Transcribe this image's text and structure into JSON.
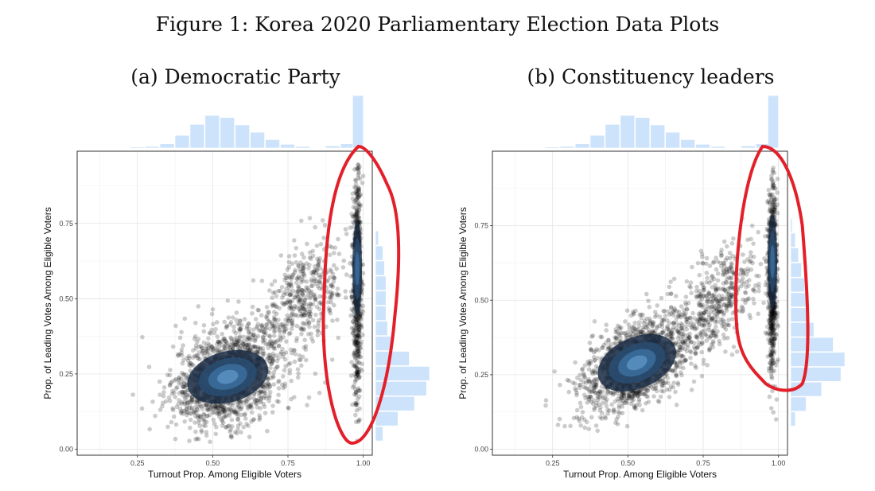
{
  "figure_title": "Figure 1: Korea 2020 Parliamentary Election Data Plots",
  "chart_data": [
    {
      "type": "scatter",
      "title": "(a) Democratic Party",
      "xlabel": "Turnout Prop. Among Eligible Voters",
      "ylabel": "Prop. of Leading Votes Among Eligible Voters",
      "xlim": [
        0.05,
        1.03
      ],
      "ylim": [
        -0.02,
        0.99
      ],
      "xticks": [
        0.25,
        0.5,
        0.75,
        1.0
      ],
      "xtick_labels": [
        "0.25",
        "0.50",
        "0.75",
        "1.00"
      ],
      "yticks": [
        0.0,
        0.25,
        0.5,
        0.75
      ],
      "ytick_labels": [
        "0.00",
        "0.25",
        "0.50",
        "0.75"
      ],
      "grid": true,
      "point_color": "#000000",
      "density_colors": [
        "#1b2d44",
        "#2a4d72",
        "#3b6f9e",
        "#5a92c2"
      ],
      "marginal_color": "#cde3fb",
      "highlight_color": "#e3202a",
      "clusters": [
        {
          "name": "main",
          "x_center": 0.55,
          "y_center": 0.24,
          "x_spread": 0.09,
          "y_spread": 0.08,
          "slope": 0.28
        },
        {
          "name": "tail",
          "x_center": 0.8,
          "y_center": 0.5,
          "x_spread": 0.07,
          "y_spread": 0.09,
          "slope": 0.6
        },
        {
          "name": "vertical",
          "x_center": 0.98,
          "y_center": 0.55,
          "x_spread": 0.008,
          "y_spread": 0.2,
          "slope": 0
        }
      ],
      "x_marginal": [
        {
          "x": 0.25,
          "count": 2
        },
        {
          "x": 0.3,
          "count": 3
        },
        {
          "x": 0.35,
          "count": 8
        },
        {
          "x": 0.4,
          "count": 24
        },
        {
          "x": 0.45,
          "count": 45
        },
        {
          "x": 0.5,
          "count": 62
        },
        {
          "x": 0.55,
          "count": 58
        },
        {
          "x": 0.6,
          "count": 44
        },
        {
          "x": 0.65,
          "count": 30
        },
        {
          "x": 0.7,
          "count": 16
        },
        {
          "x": 0.75,
          "count": 7
        },
        {
          "x": 0.8,
          "count": 3
        },
        {
          "x": 0.9,
          "count": 4
        },
        {
          "x": 0.95,
          "count": 8
        },
        {
          "x": 0.98,
          "count": 100
        }
      ],
      "y_marginal": [
        {
          "y": 0.05,
          "count": 10
        },
        {
          "y": 0.1,
          "count": 30
        },
        {
          "y": 0.15,
          "count": 52
        },
        {
          "y": 0.2,
          "count": 68
        },
        {
          "y": 0.25,
          "count": 72
        },
        {
          "y": 0.3,
          "count": 45
        },
        {
          "y": 0.35,
          "count": 22
        },
        {
          "y": 0.4,
          "count": 16
        },
        {
          "y": 0.45,
          "count": 14
        },
        {
          "y": 0.5,
          "count": 14
        },
        {
          "y": 0.55,
          "count": 14
        },
        {
          "y": 0.6,
          "count": 12
        },
        {
          "y": 0.65,
          "count": 10
        },
        {
          "y": 0.7,
          "count": 4
        }
      ]
    },
    {
      "type": "scatter",
      "title": "(b) Constituency leaders",
      "xlabel": "Turnout Prop. Among Eligible Voters",
      "ylabel": "Prop. of Leading Votes Among Eligible Voters",
      "xlim": [
        0.05,
        1.03
      ],
      "ylim": [
        -0.02,
        1.0
      ],
      "xticks": [
        0.25,
        0.5,
        0.75,
        1.0
      ],
      "xtick_labels": [
        "0.25",
        "0.50",
        "0.75",
        "1.00"
      ],
      "yticks": [
        0.0,
        0.25,
        0.5,
        0.75
      ],
      "ytick_labels": [
        "0.00",
        "0.25",
        "0.50",
        "0.75"
      ],
      "grid": true,
      "point_color": "#000000",
      "density_colors": [
        "#1b2d44",
        "#2a4d72",
        "#3b6f9e",
        "#5a92c2"
      ],
      "marginal_color": "#cde3fb",
      "highlight_color": "#e3202a",
      "clusters": [
        {
          "name": "main",
          "x_center": 0.53,
          "y_center": 0.29,
          "x_spread": 0.09,
          "y_spread": 0.07,
          "slope": 0.45
        },
        {
          "name": "tail",
          "x_center": 0.8,
          "y_center": 0.5,
          "x_spread": 0.07,
          "y_spread": 0.08,
          "slope": 0.6
        },
        {
          "name": "vertical",
          "x_center": 0.98,
          "y_center": 0.58,
          "x_spread": 0.008,
          "y_spread": 0.17,
          "slope": 0
        }
      ],
      "x_marginal": [
        {
          "x": 0.25,
          "count": 2
        },
        {
          "x": 0.3,
          "count": 3
        },
        {
          "x": 0.35,
          "count": 8
        },
        {
          "x": 0.4,
          "count": 24
        },
        {
          "x": 0.45,
          "count": 45
        },
        {
          "x": 0.5,
          "count": 62
        },
        {
          "x": 0.55,
          "count": 58
        },
        {
          "x": 0.6,
          "count": 44
        },
        {
          "x": 0.65,
          "count": 30
        },
        {
          "x": 0.7,
          "count": 16
        },
        {
          "x": 0.75,
          "count": 7
        },
        {
          "x": 0.8,
          "count": 3
        },
        {
          "x": 0.9,
          "count": 4
        },
        {
          "x": 0.95,
          "count": 8
        },
        {
          "x": 0.98,
          "count": 100
        }
      ],
      "y_marginal": [
        {
          "y": 0.1,
          "count": 6
        },
        {
          "y": 0.15,
          "count": 20
        },
        {
          "y": 0.2,
          "count": 40
        },
        {
          "y": 0.25,
          "count": 65
        },
        {
          "y": 0.3,
          "count": 70
        },
        {
          "y": 0.35,
          "count": 55
        },
        {
          "y": 0.4,
          "count": 30
        },
        {
          "y": 0.45,
          "count": 24
        },
        {
          "y": 0.5,
          "count": 20
        },
        {
          "y": 0.55,
          "count": 18
        },
        {
          "y": 0.6,
          "count": 14
        },
        {
          "y": 0.65,
          "count": 10
        },
        {
          "y": 0.7,
          "count": 6
        },
        {
          "y": 0.75,
          "count": 2
        }
      ]
    }
  ]
}
